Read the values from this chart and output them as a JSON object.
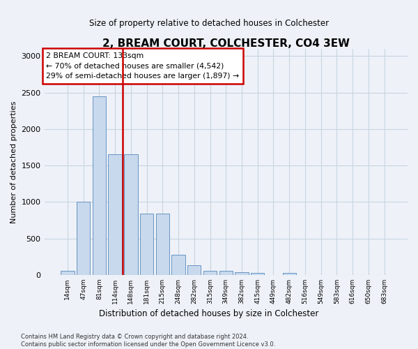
{
  "title": "2, BREAM COURT, COLCHESTER, CO4 3EW",
  "subtitle": "Size of property relative to detached houses in Colchester",
  "xlabel": "Distribution of detached houses by size in Colchester",
  "ylabel": "Number of detached properties",
  "categories": [
    "14sqm",
    "47sqm",
    "81sqm",
    "114sqm",
    "148sqm",
    "181sqm",
    "215sqm",
    "248sqm",
    "282sqm",
    "315sqm",
    "349sqm",
    "382sqm",
    "415sqm",
    "449sqm",
    "482sqm",
    "516sqm",
    "549sqm",
    "583sqm",
    "616sqm",
    "650sqm",
    "683sqm"
  ],
  "values": [
    55,
    1000,
    2450,
    1650,
    1650,
    840,
    840,
    280,
    135,
    55,
    55,
    40,
    25,
    0,
    30,
    0,
    0,
    0,
    0,
    0,
    0
  ],
  "bar_color": "#c8d8ed",
  "bar_edge_color": "#5588bb",
  "vline_x": 3.5,
  "vline_color": "#cc0000",
  "annotation_text": "2 BREAM COURT: 133sqm\n← 70% of detached houses are smaller (4,542)\n29% of semi-detached houses are larger (1,897) →",
  "annotation_box_edgecolor": "#cc0000",
  "ylim": [
    0,
    3100
  ],
  "yticks": [
    0,
    500,
    1000,
    1500,
    2000,
    2500,
    3000
  ],
  "footer_text": "Contains HM Land Registry data © Crown copyright and database right 2024.\nContains public sector information licensed under the Open Government Licence v3.0.",
  "background_color": "#eef2f8",
  "plot_background_color": "#eef2f8",
  "grid_color": "#c8d4e0"
}
